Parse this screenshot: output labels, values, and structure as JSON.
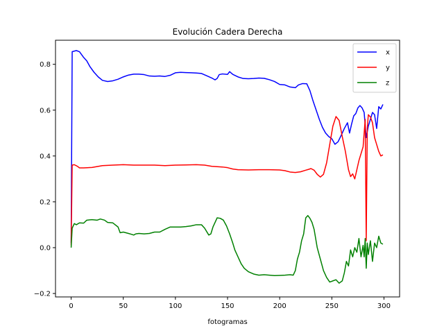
{
  "chart_data": {
    "type": "line",
    "title": "Evolución Cadera Derecha",
    "xlabel": "fotogramas",
    "ylabel": "",
    "xlim": [
      -15,
      315
    ],
    "ylim": [
      -0.215,
      0.905
    ],
    "xticks": [
      0,
      50,
      100,
      150,
      200,
      250,
      300
    ],
    "yticks": [
      -0.2,
      0.0,
      0.2,
      0.4,
      0.6,
      0.8
    ],
    "grid": false,
    "legend_position": "top-right",
    "series": [
      {
        "name": "x",
        "color": "#0000ff",
        "points": [
          [
            0,
            0.02
          ],
          [
            1,
            0.855
          ],
          [
            5,
            0.86
          ],
          [
            8,
            0.855
          ],
          [
            12,
            0.83
          ],
          [
            15,
            0.815
          ],
          [
            18,
            0.79
          ],
          [
            22,
            0.765
          ],
          [
            26,
            0.745
          ],
          [
            30,
            0.73
          ],
          [
            35,
            0.725
          ],
          [
            40,
            0.728
          ],
          [
            45,
            0.735
          ],
          [
            50,
            0.745
          ],
          [
            55,
            0.753
          ],
          [
            60,
            0.757
          ],
          [
            65,
            0.757
          ],
          [
            70,
            0.755
          ],
          [
            75,
            0.749
          ],
          [
            80,
            0.748
          ],
          [
            85,
            0.749
          ],
          [
            90,
            0.747
          ],
          [
            95,
            0.752
          ],
          [
            100,
            0.763
          ],
          [
            105,
            0.765
          ],
          [
            110,
            0.764
          ],
          [
            115,
            0.763
          ],
          [
            120,
            0.762
          ],
          [
            125,
            0.76
          ],
          [
            130,
            0.75
          ],
          [
            135,
            0.74
          ],
          [
            138,
            0.732
          ],
          [
            140,
            0.738
          ],
          [
            142,
            0.755
          ],
          [
            145,
            0.758
          ],
          [
            150,
            0.756
          ],
          [
            152,
            0.768
          ],
          [
            155,
            0.756
          ],
          [
            160,
            0.745
          ],
          [
            165,
            0.738
          ],
          [
            170,
            0.737
          ],
          [
            175,
            0.738
          ],
          [
            180,
            0.74
          ],
          [
            185,
            0.739
          ],
          [
            190,
            0.733
          ],
          [
            195,
            0.725
          ],
          [
            200,
            0.712
          ],
          [
            205,
            0.71
          ],
          [
            210,
            0.701
          ],
          [
            215,
            0.698
          ],
          [
            218,
            0.71
          ],
          [
            222,
            0.716
          ],
          [
            226,
            0.715
          ],
          [
            229,
            0.685
          ],
          [
            232,
            0.64
          ],
          [
            235,
            0.6
          ],
          [
            238,
            0.56
          ],
          [
            241,
            0.525
          ],
          [
            244,
            0.5
          ],
          [
            247,
            0.485
          ],
          [
            250,
            0.475
          ],
          [
            253,
            0.451
          ],
          [
            256,
            0.462
          ],
          [
            259,
            0.49
          ],
          [
            262,
            0.52
          ],
          [
            265,
            0.545
          ],
          [
            267,
            0.5
          ],
          [
            269,
            0.54
          ],
          [
            271,
            0.575
          ],
          [
            273,
            0.585
          ],
          [
            275,
            0.61
          ],
          [
            277,
            0.62
          ],
          [
            279,
            0.61
          ],
          [
            281,
            0.59
          ],
          [
            283,
            0.48
          ],
          [
            285,
            0.53
          ],
          [
            287,
            0.56
          ],
          [
            289,
            0.59
          ],
          [
            291,
            0.58
          ],
          [
            293,
            0.52
          ],
          [
            295,
            0.615
          ],
          [
            297,
            0.605
          ],
          [
            299,
            0.625
          ]
        ]
      },
      {
        "name": "y",
        "color": "#ff0000",
        "points": [
          [
            0,
            0.01
          ],
          [
            1,
            0.36
          ],
          [
            3,
            0.362
          ],
          [
            6,
            0.355
          ],
          [
            8,
            0.348
          ],
          [
            12,
            0.348
          ],
          [
            20,
            0.35
          ],
          [
            30,
            0.358
          ],
          [
            40,
            0.36
          ],
          [
            50,
            0.362
          ],
          [
            60,
            0.36
          ],
          [
            70,
            0.36
          ],
          [
            80,
            0.36
          ],
          [
            90,
            0.358
          ],
          [
            100,
            0.36
          ],
          [
            110,
            0.361
          ],
          [
            120,
            0.362
          ],
          [
            128,
            0.36
          ],
          [
            135,
            0.355
          ],
          [
            145,
            0.352
          ],
          [
            150,
            0.349
          ],
          [
            155,
            0.343
          ],
          [
            160,
            0.34
          ],
          [
            170,
            0.339
          ],
          [
            180,
            0.34
          ],
          [
            190,
            0.34
          ],
          [
            200,
            0.339
          ],
          [
            205,
            0.336
          ],
          [
            210,
            0.33
          ],
          [
            215,
            0.328
          ],
          [
            220,
            0.331
          ],
          [
            225,
            0.338
          ],
          [
            228,
            0.342
          ],
          [
            230,
            0.345
          ],
          [
            233,
            0.338
          ],
          [
            236,
            0.32
          ],
          [
            239,
            0.308
          ],
          [
            242,
            0.32
          ],
          [
            245,
            0.37
          ],
          [
            248,
            0.45
          ],
          [
            251,
            0.53
          ],
          [
            254,
            0.572
          ],
          [
            257,
            0.555
          ],
          [
            260,
            0.485
          ],
          [
            263,
            0.42
          ],
          [
            266,
            0.34
          ],
          [
            268,
            0.31
          ],
          [
            270,
            0.322
          ],
          [
            272,
            0.3
          ],
          [
            274,
            0.34
          ],
          [
            276,
            0.38
          ],
          [
            278,
            0.41
          ],
          [
            280,
            0.44
          ],
          [
            282,
            0.56
          ],
          [
            283,
            0.03
          ],
          [
            284,
            0.52
          ],
          [
            285,
            0.58
          ],
          [
            287,
            0.57
          ],
          [
            289,
            0.545
          ],
          [
            291,
            0.48
          ],
          [
            293,
            0.45
          ],
          [
            295,
            0.42
          ],
          [
            297,
            0.4
          ],
          [
            299,
            0.405
          ]
        ]
      },
      {
        "name": "z",
        "color": "#008000",
        "points": [
          [
            0,
            0.0
          ],
          [
            1,
            0.085
          ],
          [
            3,
            0.105
          ],
          [
            5,
            0.1
          ],
          [
            8,
            0.108
          ],
          [
            12,
            0.107
          ],
          [
            15,
            0.12
          ],
          [
            20,
            0.122
          ],
          [
            25,
            0.12
          ],
          [
            28,
            0.125
          ],
          [
            32,
            0.12
          ],
          [
            35,
            0.11
          ],
          [
            40,
            0.108
          ],
          [
            45,
            0.09
          ],
          [
            47,
            0.065
          ],
          [
            50,
            0.068
          ],
          [
            55,
            0.062
          ],
          [
            58,
            0.058
          ],
          [
            60,
            0.055
          ],
          [
            62,
            0.06
          ],
          [
            65,
            0.062
          ],
          [
            70,
            0.06
          ],
          [
            75,
            0.062
          ],
          [
            80,
            0.068
          ],
          [
            85,
            0.068
          ],
          [
            90,
            0.08
          ],
          [
            95,
            0.09
          ],
          [
            100,
            0.09
          ],
          [
            105,
            0.09
          ],
          [
            110,
            0.092
          ],
          [
            115,
            0.095
          ],
          [
            120,
            0.1
          ],
          [
            125,
            0.1
          ],
          [
            128,
            0.085
          ],
          [
            132,
            0.055
          ],
          [
            134,
            0.06
          ],
          [
            136,
            0.09
          ],
          [
            138,
            0.11
          ],
          [
            140,
            0.13
          ],
          [
            143,
            0.128
          ],
          [
            146,
            0.12
          ],
          [
            149,
            0.095
          ],
          [
            152,
            0.06
          ],
          [
            155,
            0.02
          ],
          [
            157,
            -0.01
          ],
          [
            160,
            -0.04
          ],
          [
            163,
            -0.07
          ],
          [
            166,
            -0.09
          ],
          [
            170,
            -0.105
          ],
          [
            175,
            -0.115
          ],
          [
            180,
            -0.12
          ],
          [
            185,
            -0.118
          ],
          [
            190,
            -0.12
          ],
          [
            195,
            -0.122
          ],
          [
            200,
            -0.121
          ],
          [
            205,
            -0.12
          ],
          [
            210,
            -0.118
          ],
          [
            213,
            -0.12
          ],
          [
            215,
            -0.1
          ],
          [
            217,
            -0.05
          ],
          [
            219,
            -0.02
          ],
          [
            221,
            0.03
          ],
          [
            223,
            0.06
          ],
          [
            225,
            0.13
          ],
          [
            227,
            0.14
          ],
          [
            229,
            0.128
          ],
          [
            231,
            0.11
          ],
          [
            233,
            0.08
          ],
          [
            236,
            0.0
          ],
          [
            239,
            -0.05
          ],
          [
            242,
            -0.1
          ],
          [
            245,
            -0.13
          ],
          [
            248,
            -0.15
          ],
          [
            251,
            -0.145
          ],
          [
            254,
            -0.14
          ],
          [
            257,
            -0.155
          ],
          [
            260,
            -0.145
          ],
          [
            262,
            -0.11
          ],
          [
            264,
            -0.06
          ],
          [
            266,
            -0.08
          ],
          [
            268,
            -0.01
          ],
          [
            270,
            -0.04
          ],
          [
            272,
            0.0
          ],
          [
            274,
            -0.02
          ],
          [
            276,
            0.04
          ],
          [
            278,
            -0.04
          ],
          [
            280,
            0.01
          ],
          [
            281,
            -0.04
          ],
          [
            282,
            0.04
          ],
          [
            283,
            -0.09
          ],
          [
            284,
            0.02
          ],
          [
            285,
            -0.03
          ],
          [
            287,
            0.03
          ],
          [
            289,
            -0.06
          ],
          [
            291,
            0.02
          ],
          [
            293,
            0.0
          ],
          [
            295,
            0.05
          ],
          [
            297,
            0.02
          ],
          [
            299,
            0.015
          ]
        ]
      }
    ]
  }
}
